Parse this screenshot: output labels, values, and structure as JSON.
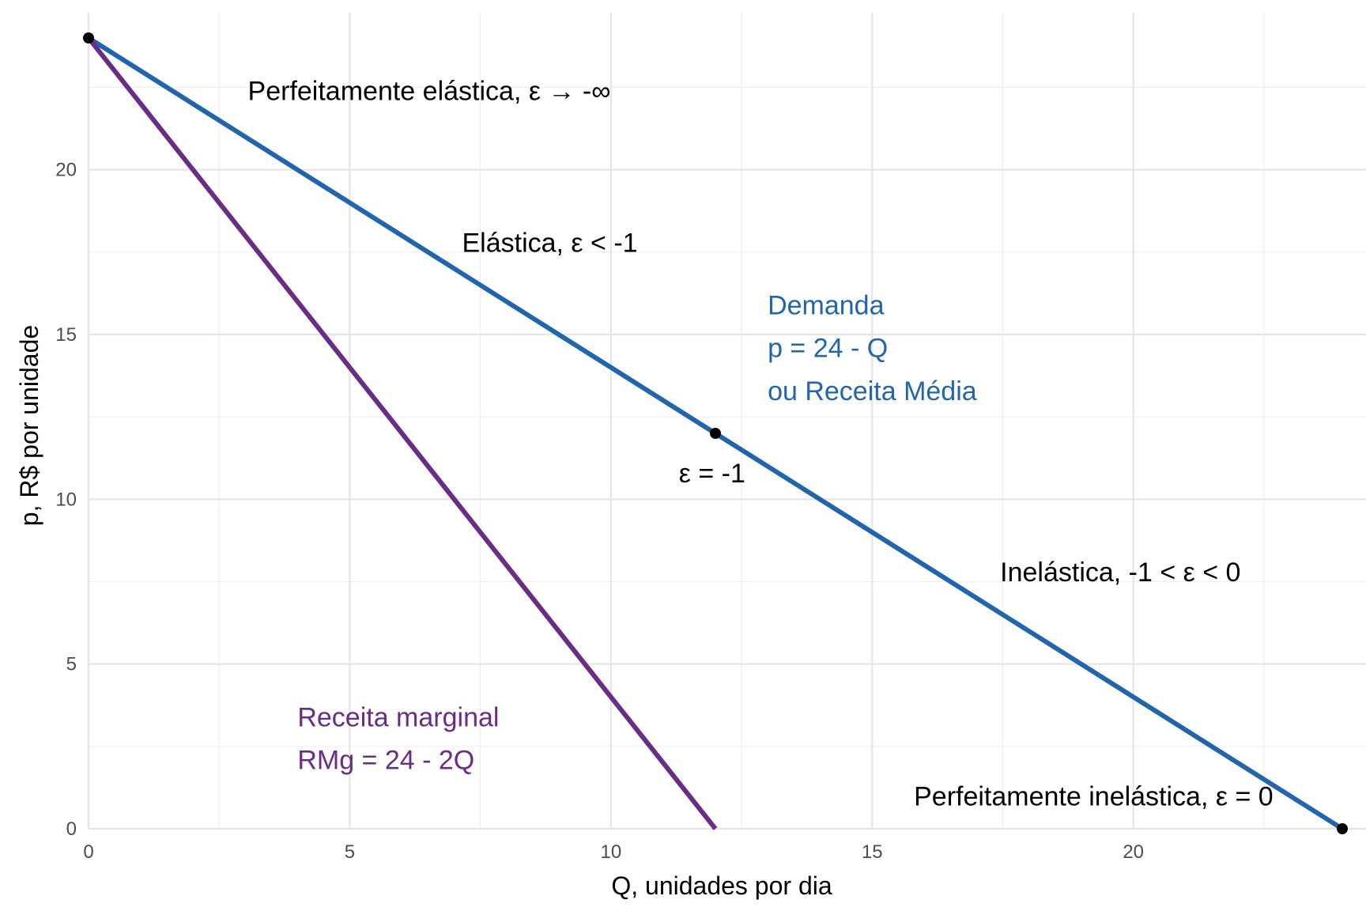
{
  "chart_data": {
    "type": "line",
    "xlabel": "Q, unidades por dia",
    "ylabel": "p, R$ por unidade",
    "xlim": [
      0,
      24
    ],
    "ylim": [
      0,
      24
    ],
    "x_ticks": [
      0,
      5,
      10,
      15,
      20
    ],
    "y_ticks": [
      0,
      5,
      10,
      15,
      20
    ],
    "grid": true,
    "legend": "none",
    "colors": {
      "demand": "#2166ac",
      "marginal": "#6a2c85",
      "text": "#000000",
      "grid": "#e5e5e5"
    },
    "series": [
      {
        "name": "Demanda",
        "color_key": "demand",
        "x": [
          0,
          24
        ],
        "y": [
          24,
          0
        ]
      },
      {
        "name": "Receita marginal",
        "color_key": "marginal",
        "x": [
          0,
          12
        ],
        "y": [
          24,
          0
        ]
      }
    ],
    "points": [
      {
        "x": 0,
        "y": 24
      },
      {
        "x": 12,
        "y": 12
      },
      {
        "x": 24,
        "y": 0
      }
    ],
    "annotations": [
      {
        "text": "Perfeitamente elástica, ε → -∞",
        "x": 3.05,
        "y": 22.4,
        "color_key": "text"
      },
      {
        "text": "Elástica, ε < -1",
        "x": 7.15,
        "y": 17.8,
        "color_key": "text"
      },
      {
        "text": "Demanda",
        "x": 13.0,
        "y": 15.9,
        "color_key": "demand"
      },
      {
        "text": "p = 24 - Q",
        "x": 13.0,
        "y": 14.6,
        "color_key": "demand"
      },
      {
        "text": " ou Receita Média",
        "x": 13.0,
        "y": 13.3,
        "color_key": "demand"
      },
      {
        "text": "ε = -1",
        "x": 11.3,
        "y": 10.8,
        "color_key": "text"
      },
      {
        "text": "Inelástica, -1 < ε < 0",
        "x": 17.45,
        "y": 7.8,
        "color_key": "text"
      },
      {
        "text": "Receita marginal",
        "x": 4.0,
        "y": 3.4,
        "color_key": "marginal"
      },
      {
        "text": "RMg = 24 - 2Q",
        "x": 4.0,
        "y": 2.1,
        "color_key": "marginal"
      },
      {
        "text": "Perfeitamente inelástica, ε = 0",
        "x": 15.8,
        "y": 1.0,
        "color_key": "text"
      }
    ]
  }
}
